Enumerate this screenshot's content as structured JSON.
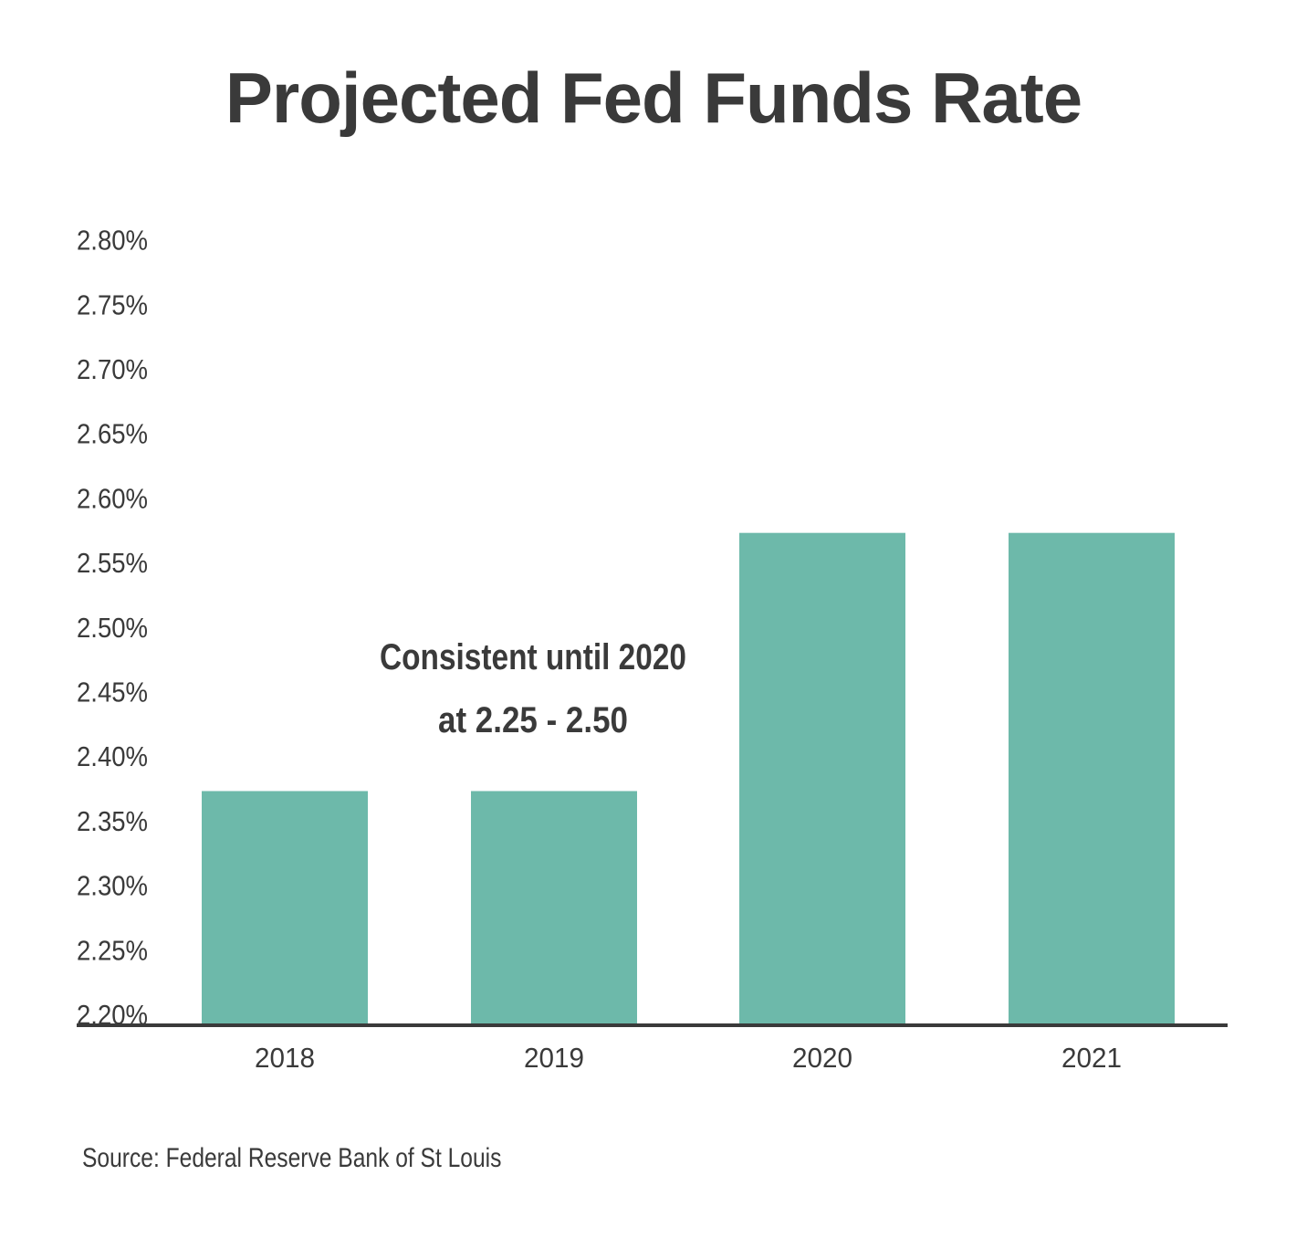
{
  "chart_data": {
    "type": "bar",
    "title": "Projected Fed Funds Rate",
    "categories": [
      "2018",
      "2019",
      "2020",
      "2021"
    ],
    "values": [
      2.38,
      2.38,
      2.58,
      2.58
    ],
    "ylim": [
      2.2,
      2.8
    ],
    "yticks": [
      "2.80%",
      "2.75%",
      "2.70%",
      "2.65%",
      "2.60%",
      "2.55%",
      "2.50%",
      "2.45%",
      "2.40%",
      "2.35%",
      "2.30%",
      "2.25%",
      "2.20%"
    ],
    "ytick_values": [
      2.8,
      2.75,
      2.7,
      2.65,
      2.6,
      2.55,
      2.5,
      2.45,
      2.4,
      2.35,
      2.3,
      2.25,
      2.2
    ],
    "annotation": [
      "Consistent until 2020",
      "at 2.25 - 2.50"
    ],
    "grid": false,
    "xlabel": "",
    "ylabel": "",
    "colors": {
      "bar": "#6db9aa",
      "axis": "#3a3a3a",
      "text": "#3a3a3a"
    }
  },
  "source": "Source:  Federal Reserve Bank of St Louis"
}
